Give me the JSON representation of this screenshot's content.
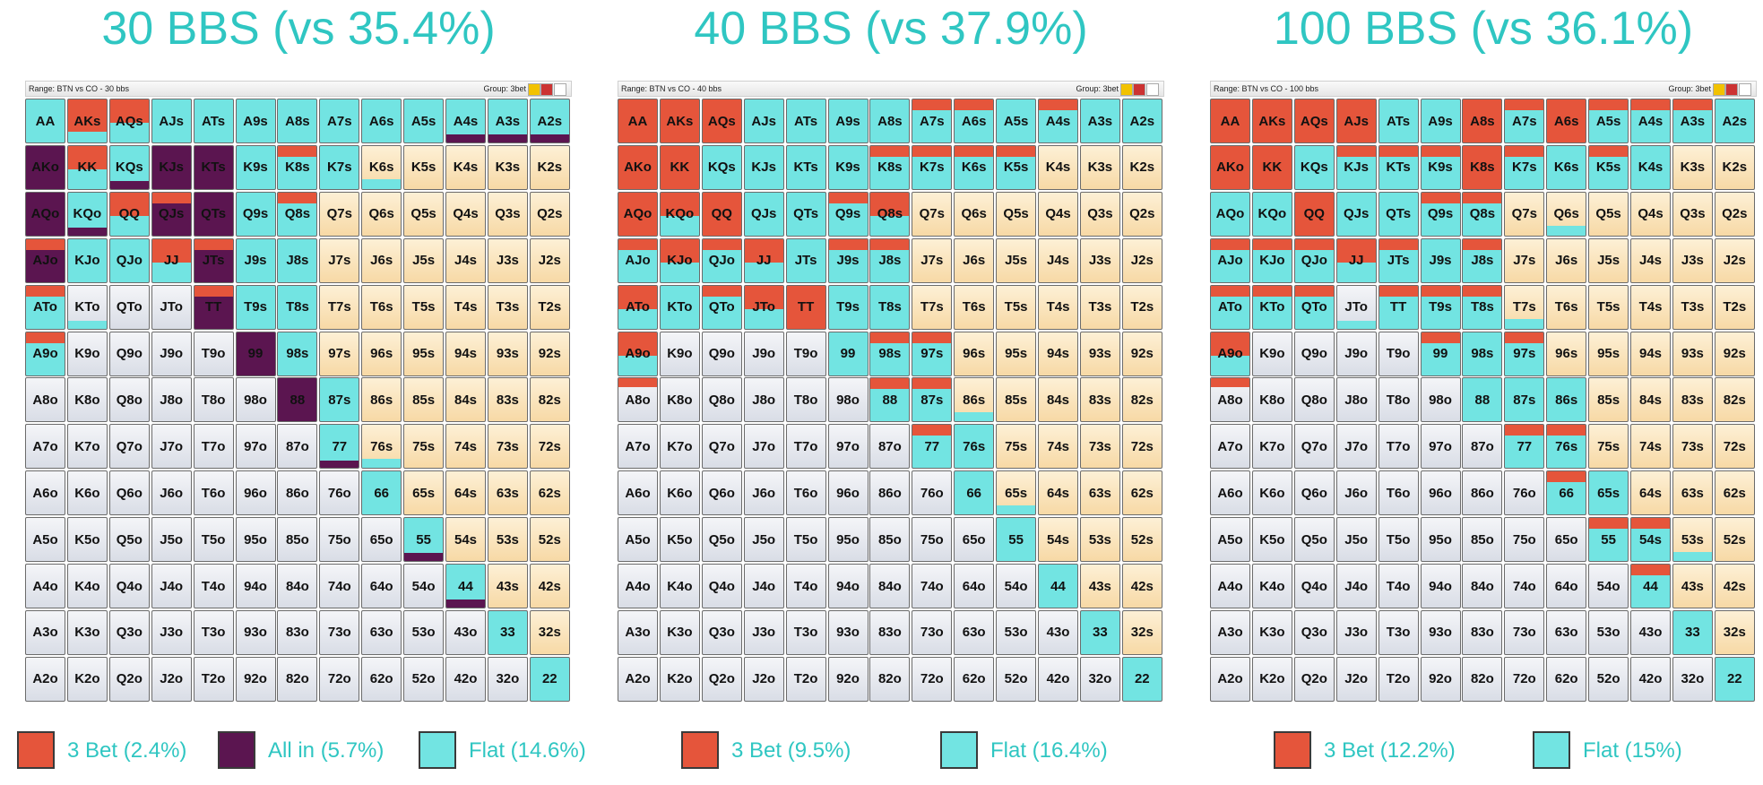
{
  "palette": {
    "C": "#72e4e2",
    "R": "#e5553b",
    "P": "#5b1550",
    "Y": "#fbe5bd",
    "W": "#e4e7ee"
  },
  "hands": [
    [
      "AA",
      "AKs",
      "AQs",
      "AJs",
      "ATs",
      "A9s",
      "A8s",
      "A7s",
      "A6s",
      "A5s",
      "A4s",
      "A3s",
      "A2s"
    ],
    [
      "AKo",
      "KK",
      "KQs",
      "KJs",
      "KTs",
      "K9s",
      "K8s",
      "K7s",
      "K6s",
      "K5s",
      "K4s",
      "K3s",
      "K2s"
    ],
    [
      "AQo",
      "KQo",
      "QQ",
      "QJs",
      "QTs",
      "Q9s",
      "Q8s",
      "Q7s",
      "Q6s",
      "Q5s",
      "Q4s",
      "Q3s",
      "Q2s"
    ],
    [
      "AJo",
      "KJo",
      "QJo",
      "JJ",
      "JTs",
      "J9s",
      "J8s",
      "J7s",
      "J6s",
      "J5s",
      "J4s",
      "J3s",
      "J2s"
    ],
    [
      "ATo",
      "KTo",
      "QTo",
      "JTo",
      "TT",
      "T9s",
      "T8s",
      "T7s",
      "T6s",
      "T5s",
      "T4s",
      "T3s",
      "T2s"
    ],
    [
      "A9o",
      "K9o",
      "Q9o",
      "J9o",
      "T9o",
      "99",
      "98s",
      "97s",
      "96s",
      "95s",
      "94s",
      "93s",
      "92s"
    ],
    [
      "A8o",
      "K8o",
      "Q8o",
      "J8o",
      "T8o",
      "98o",
      "88",
      "87s",
      "86s",
      "85s",
      "84s",
      "83s",
      "82s"
    ],
    [
      "A7o",
      "K7o",
      "Q7o",
      "J7o",
      "T7o",
      "97o",
      "87o",
      "77",
      "76s",
      "75s",
      "74s",
      "73s",
      "72s"
    ],
    [
      "A6o",
      "K6o",
      "Q6o",
      "J6o",
      "T6o",
      "96o",
      "86o",
      "76o",
      "66",
      "65s",
      "64s",
      "63s",
      "62s"
    ],
    [
      "A5o",
      "K5o",
      "Q5o",
      "J5o",
      "T5o",
      "95o",
      "85o",
      "75o",
      "65o",
      "55",
      "54s",
      "53s",
      "52s"
    ],
    [
      "A4o",
      "K4o",
      "Q4o",
      "J4o",
      "T4o",
      "94o",
      "84o",
      "74o",
      "64o",
      "54o",
      "44",
      "43s",
      "42s"
    ],
    [
      "A3o",
      "K3o",
      "Q3o",
      "J3o",
      "T3o",
      "93o",
      "83o",
      "73o",
      "63o",
      "53o",
      "43o",
      "33",
      "32s"
    ],
    [
      "A2o",
      "K2o",
      "Q2o",
      "J2o",
      "T2o",
      "92o",
      "82o",
      "72o",
      "62o",
      "52o",
      "42o",
      "32o",
      "22"
    ]
  ],
  "panels": [
    {
      "title": "30 BBS (vs 35.4%)",
      "range": "Range: BTN vs CO - 30 bbs",
      "group": "Group: 3bet",
      "fills": [
        "CebCCCCCCCccc",
        "PbcPPCaCgYYYY",
        "PcbdPCaYYYYYY",
        "dCCbdCCYYYYYY",
        "afWWdCCYYYYYY",
        "aWWWWPCYYYYYY",
        "WWWWWWPCYYYYY",
        "WWWWWWWcgYYYY",
        "WWWWWWWWCYYYY",
        "WWWWWWWWWcYYY",
        "WWWWWWWWWWcYY",
        "WWWWWWWWWWWCY",
        "WWWWWWWWWWWWC"
      ],
      "legend": [
        {
          "label": "3 Bet (2.4%)",
          "color": "R"
        },
        {
          "label": "All in (5.7%)",
          "color": "P"
        },
        {
          "label": "Flat (14.6%)",
          "color": "C"
        }
      ]
    },
    {
      "title": "40 BBS (vs 37.9%)",
      "range": "Range: BTN vs CO - 40 bbs",
      "group": "Group: 3bet",
      "fills": [
        "RRRCCCCaaCaCC",
        "RRCCCCaaaaYYY",
        "RbRCCabYYYYYY",
        "ababCaaYYYYYY",
        "bCabRCCYYYYYY",
        "bWWWWCaaYYYYY",
        "iWWWWWaagYYYY",
        "WWWWWWWaCYYYY",
        "WWWWWWWWCgYYY",
        "WWWWWWWWWCYYY",
        "WWWWWWWWWWCYY",
        "WWWWWWWWWWWCY",
        "WWWWWWWWWWWWC"
      ],
      "legend": [
        {
          "label": "3 Bet (9.5%)",
          "color": "R"
        },
        {
          "label": "Flat (16.4%)",
          "color": "C"
        }
      ]
    },
    {
      "title": "100 BBS (vs 36.1%)",
      "range": "Range: BTN vs CO - 100 bbs",
      "group": "Group: 3bet",
      "fills": [
        "RRRRCCRaRaaaC",
        "RRCaaaRaCaCYY",
        "CCRCCaaYgYYYY",
        "aaabaCaYYYYYY",
        "aaafaaagYYYYY",
        "bWWWWaCaYYYYY",
        "iWWWWWCCCYYYY",
        "WWWWWWWaaYYYY",
        "WWWWWWWWaCYYY",
        "WWWWWWWWWaagY",
        "WWWWWWWWWWaYY",
        "WWWWWWWWWWWCY",
        "WWWWWWWWWWWWC"
      ],
      "legend": [
        {
          "label": "3 Bet (12.2%)",
          "color": "R"
        },
        {
          "label": "Flat (15%)",
          "color": "C"
        }
      ]
    }
  ]
}
